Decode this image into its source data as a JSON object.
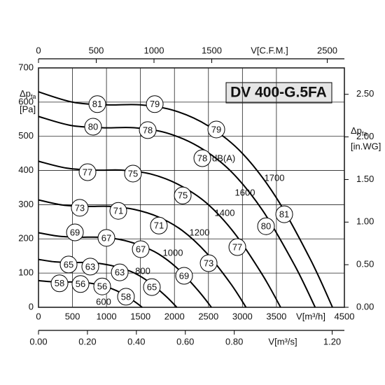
{
  "chart_data": {
    "type": "line",
    "title": "DV 400-G.5FA",
    "xlim": [
      0,
      4500
    ],
    "xticks": [
      0,
      500,
      1000,
      1500,
      2000,
      2500,
      3000,
      3500,
      4500
    ],
    "x_label": "V[m³/h]",
    "ylim": [
      0,
      700
    ],
    "yticks": [
      0,
      100,
      200,
      300,
      400,
      500,
      600,
      700
    ],
    "y_label": {
      "symbol": "Δp",
      "sub": "fa",
      "unit": "[Pa]"
    },
    "y2lim": [
      0,
      2.81
    ],
    "y2ticks": [
      {
        "value": 0,
        "label": "0.00"
      },
      {
        "value": 0.5,
        "label": "0.50"
      },
      {
        "value": 1,
        "label": "1.00"
      },
      {
        "value": 1.5,
        "label": "1.50"
      },
      {
        "value": 2,
        "label": "2.00"
      },
      {
        "value": 2.5,
        "label": "2.50"
      }
    ],
    "y2_label": {
      "symbol": "Δp",
      "sub": "fa",
      "unit": "[in.WG]"
    },
    "top_axis": {
      "lim": [
        0,
        2648.6
      ],
      "ticks": [
        0,
        500,
        1000,
        1500,
        2500
      ],
      "label": "V[C.F.M.]"
    },
    "bottom_axis": {
      "lim": [
        0,
        1.25
      ],
      "ticks": [
        {
          "value": 0,
          "label": "0.00"
        },
        {
          "value": 0.2,
          "label": "0.20"
        },
        {
          "value": 0.4,
          "label": "0.40"
        },
        {
          "value": 0.6,
          "label": "0.60"
        },
        {
          "value": 0.8,
          "label": "0.80"
        },
        {
          "value": 1.2,
          "label": "1.20"
        }
      ],
      "label": "V[m³/s]"
    },
    "grid": true,
    "db_unit": "dB(A)",
    "series": [
      {
        "name": "1700",
        "color": "#000",
        "x": [
          0,
          500,
          1000,
          1500,
          2000,
          2500,
          3000,
          3500,
          4000,
          4325
        ],
        "values": [
          630,
          600,
          592,
          592,
          575,
          530,
          450,
          320,
          140,
          0
        ],
        "markers": [
          {
            "x": 865,
            "y": 594,
            "db": 81
          },
          {
            "x": 1710,
            "y": 594,
            "db": 79
          },
          {
            "x": 2616,
            "y": 520,
            "db": 79
          },
          {
            "x": 3615,
            "y": 272,
            "db": 81
          }
        ]
      },
      {
        "name": "1600",
        "color": "#000",
        "x": [
          0,
          471,
          941,
          1412,
          1882,
          2353,
          2824,
          3294,
          3765,
          4070
        ],
        "values": [
          558,
          532,
          525,
          525,
          510,
          470,
          399,
          284,
          124,
          0
        ],
        "markers": [
          {
            "x": 803,
            "y": 528,
            "db": 80
          },
          {
            "x": 1607,
            "y": 518,
            "db": 78
          },
          {
            "x": 2410,
            "y": 436,
            "db": 78
          },
          {
            "x": 3347,
            "y": 237,
            "db": 80
          }
        ]
      },
      {
        "name": "1400",
        "color": "#000",
        "x": [
          0,
          412,
          824,
          1235,
          1647,
          2059,
          2471,
          2882,
          3294,
          3562
        ],
        "values": [
          427,
          407,
          401,
          401,
          390,
          359,
          305,
          217,
          95,
          0
        ],
        "markers": [
          {
            "x": 721,
            "y": 395,
            "db": 77
          },
          {
            "x": 1390,
            "y": 391,
            "db": 75
          },
          {
            "x": 2122,
            "y": 327,
            "db": 75
          },
          {
            "x": 2925,
            "y": 176,
            "db": 77
          }
        ]
      },
      {
        "name": "1200",
        "color": "#000",
        "x": [
          0,
          353,
          706,
          1059,
          1412,
          1765,
          2118,
          2471,
          2824,
          3053
        ],
        "values": [
          314,
          299,
          295,
          295,
          286,
          264,
          224,
          159,
          70,
          0
        ],
        "markers": [
          {
            "x": 607,
            "y": 291,
            "db": 73
          },
          {
            "x": 1174,
            "y": 282,
            "db": 71
          },
          {
            "x": 1771,
            "y": 239,
            "db": 71
          },
          {
            "x": 2503,
            "y": 129,
            "db": 73
          }
        ]
      },
      {
        "name": "1000",
        "color": "#000",
        "x": [
          0,
          294,
          588,
          882,
          1176,
          1471,
          1765,
          2059,
          2353,
          2544
        ],
        "values": [
          218,
          208,
          205,
          205,
          199,
          183,
          156,
          111,
          48,
          0
        ],
        "markers": [
          {
            "x": 536,
            "y": 219,
            "db": 69
          },
          {
            "x": 999,
            "y": 203,
            "db": 67
          },
          {
            "x": 1504,
            "y": 170,
            "db": 67
          },
          {
            "x": 2142,
            "y": 92,
            "db": 69
          }
        ]
      },
      {
        "name": "800",
        "color": "#000",
        "x": [
          0,
          235,
          471,
          706,
          941,
          1176,
          1412,
          1647,
          1882,
          2035
        ],
        "values": [
          140,
          133,
          131,
          131,
          127,
          117,
          100,
          71,
          31,
          0
        ],
        "markers": [
          {
            "x": 443,
            "y": 125,
            "db": 65
          },
          {
            "x": 762,
            "y": 119,
            "db": 63
          },
          {
            "x": 1195,
            "y": 102,
            "db": 63
          },
          {
            "x": 1668,
            "y": 59,
            "db": 65
          }
        ]
      },
      {
        "name": "600",
        "color": "#000",
        "x": [
          0,
          176,
          353,
          529,
          706,
          882,
          1059,
          1235,
          1412,
          1526
        ],
        "values": [
          78,
          75,
          74,
          74,
          72,
          66,
          56,
          40,
          17,
          0
        ],
        "markers": [
          {
            "x": 309,
            "y": 70,
            "db": 58
          },
          {
            "x": 618,
            "y": 68,
            "db": 56
          },
          {
            "x": 937,
            "y": 61,
            "db": 56
          },
          {
            "x": 1287,
            "y": 31,
            "db": 58
          }
        ]
      }
    ]
  }
}
